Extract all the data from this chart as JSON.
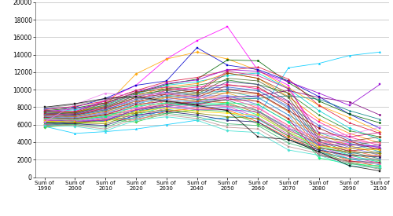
{
  "x_labels": [
    "Sum of\n1990",
    "Sum of\n2000",
    "Sum of\n2010",
    "Sum of\n2020",
    "Sum of\n2030",
    "Sum of\n2040",
    "Sum of\n2050",
    "Sum of\n2060",
    "Sum of\n2070",
    "Sum of\n2080",
    "Sum of\n2090",
    "Sum of\n2100"
  ],
  "ylim": [
    0,
    20000
  ],
  "yticks": [
    0,
    2000,
    4000,
    6000,
    8000,
    10000,
    12000,
    14000,
    16000,
    18000,
    20000
  ],
  "figsize": [
    5.0,
    2.75
  ],
  "dpi": 100,
  "series": [
    {
      "color": "#ff00ff",
      "marker": "s",
      "data": [
        7200,
        7500,
        8800,
        10500,
        13500,
        15600,
        17200,
        12200,
        10500,
        4200,
        3800,
        3400
      ]
    },
    {
      "color": "#00ccff",
      "marker": "^",
      "data": [
        5800,
        5000,
        5200,
        5500,
        6000,
        6500,
        6800,
        7000,
        12500,
        13000,
        13900,
        14300
      ]
    },
    {
      "color": "#ffa500",
      "marker": "D",
      "data": [
        7100,
        7400,
        8200,
        11800,
        13500,
        14300,
        13500,
        12200,
        10200,
        8200,
        6800,
        5200
      ]
    },
    {
      "color": "#0000cd",
      "marker": "s",
      "data": [
        7800,
        8000,
        9000,
        10500,
        11000,
        14800,
        12800,
        12300,
        11000,
        9200,
        7200,
        5600
      ]
    },
    {
      "color": "#006400",
      "marker": "o",
      "data": [
        7600,
        7900,
        8500,
        9600,
        10600,
        11200,
        13400,
        13300,
        10800,
        8700,
        7200,
        6200
      ]
    },
    {
      "color": "#dc143c",
      "marker": "^",
      "data": [
        7700,
        8100,
        8700,
        9900,
        10900,
        11400,
        12200,
        12600,
        11200,
        8200,
        6200,
        5000
      ]
    },
    {
      "color": "#9400d3",
      "marker": "s",
      "data": [
        7500,
        7800,
        8400,
        9700,
        10700,
        11100,
        12300,
        12100,
        10900,
        9600,
        8200,
        10600
      ]
    },
    {
      "color": "#00ced1",
      "marker": "D",
      "data": [
        7400,
        7700,
        8200,
        9500,
        10500,
        10900,
        11600,
        11900,
        10100,
        7600,
        5600,
        4300
      ]
    },
    {
      "color": "#ff8c00",
      "marker": "o",
      "data": [
        7200,
        7500,
        8100,
        9300,
        10300,
        10700,
        11900,
        11300,
        9200,
        6600,
        5000,
        3900
      ]
    },
    {
      "color": "#228b22",
      "marker": "^",
      "data": [
        7100,
        7400,
        8000,
        9100,
        10100,
        10500,
        11100,
        10600,
        9600,
        7100,
        5300,
        4600
      ]
    },
    {
      "color": "#ff1493",
      "marker": "s",
      "data": [
        7000,
        7300,
        7900,
        8900,
        9900,
        10300,
        10600,
        10100,
        8600,
        6300,
        4600,
        3600
      ]
    },
    {
      "color": "#4169e1",
      "marker": "D",
      "data": [
        6900,
        7200,
        7800,
        8700,
        9700,
        10100,
        10300,
        9900,
        8100,
        5900,
        4300,
        3300
      ]
    },
    {
      "color": "#8b0000",
      "marker": "o",
      "data": [
        6800,
        7100,
        7700,
        8500,
        9500,
        9900,
        10000,
        9600,
        7600,
        5600,
        4100,
        3100
      ]
    },
    {
      "color": "#20b2aa",
      "marker": "^",
      "data": [
        6700,
        7000,
        7600,
        8300,
        9300,
        9700,
        9800,
        9100,
        7100,
        5100,
        3900,
        2900
      ]
    },
    {
      "color": "#daa520",
      "marker": "s",
      "data": [
        6600,
        6900,
        7500,
        8100,
        9100,
        9500,
        9600,
        8600,
        6600,
        4900,
        3600,
        2700
      ]
    },
    {
      "color": "#7b68ee",
      "marker": "D",
      "data": [
        6500,
        6800,
        7400,
        7900,
        8900,
        9300,
        9300,
        8300,
        6300,
        4600,
        3400,
        2500
      ]
    },
    {
      "color": "#ff6347",
      "marker": "o",
      "data": [
        6400,
        6700,
        7300,
        7700,
        8700,
        9100,
        9100,
        7900,
        5900,
        4300,
        3100,
        2300
      ]
    },
    {
      "color": "#2e8b57",
      "marker": "^",
      "data": [
        6300,
        6600,
        7200,
        7500,
        8500,
        8900,
        8800,
        7600,
        5600,
        4100,
        2900,
        2100
      ]
    },
    {
      "color": "#b8860b",
      "marker": "s",
      "data": [
        6200,
        6500,
        7100,
        7300,
        8300,
        8700,
        8500,
        7300,
        5300,
        3900,
        2700,
        1900
      ]
    },
    {
      "color": "#00fa9a",
      "marker": "D",
      "data": [
        6100,
        6400,
        7000,
        7100,
        8100,
        8500,
        8300,
        7100,
        5100,
        3700,
        2500,
        1700
      ]
    },
    {
      "color": "#cc44cc",
      "marker": "o",
      "data": [
        6000,
        6300,
        6900,
        6900,
        7900,
        8300,
        8100,
        6800,
        4900,
        3500,
        2300,
        1600
      ]
    },
    {
      "color": "#1e90ff",
      "marker": "^",
      "data": [
        5900,
        6200,
        6800,
        6700,
        7700,
        8100,
        7900,
        6600,
        4700,
        3300,
        2100,
        1400
      ]
    },
    {
      "color": "#ff4500",
      "marker": "s",
      "data": [
        5800,
        6100,
        6700,
        6500,
        7500,
        7900,
        7700,
        6300,
        4500,
        3100,
        1900,
        1200
      ]
    },
    {
      "color": "#32cd32",
      "marker": "D",
      "data": [
        5700,
        6000,
        6600,
        6300,
        7300,
        7700,
        7500,
        6100,
        4300,
        2900,
        1700,
        1000
      ]
    },
    {
      "color": "#800080",
      "marker": "o",
      "data": [
        6000,
        6300,
        6500,
        7700,
        8300,
        8600,
        9100,
        9300,
        9900,
        9100,
        8600,
        7100
      ]
    },
    {
      "color": "#008080",
      "marker": "^",
      "data": [
        5900,
        6200,
        6400,
        7500,
        8100,
        8400,
        8900,
        9000,
        9300,
        8900,
        7600,
        6600
      ]
    },
    {
      "color": "#c71585",
      "marker": "s",
      "data": [
        7600,
        7500,
        8700,
        9900,
        10300,
        9900,
        12100,
        11600,
        10100,
        5100,
        4600,
        5100
      ]
    },
    {
      "color": "#8b4513",
      "marker": "D",
      "data": [
        7500,
        7400,
        8500,
        9700,
        10100,
        9700,
        11900,
        11300,
        9600,
        4600,
        4100,
        4600
      ]
    },
    {
      "color": "#556b2f",
      "marker": "o",
      "data": [
        7400,
        7300,
        8300,
        9500,
        9900,
        9500,
        11300,
        11000,
        9100,
        4300,
        3600,
        4100
      ]
    },
    {
      "color": "#483d8b",
      "marker": "^",
      "data": [
        7300,
        7200,
        8100,
        9300,
        9700,
        9300,
        10900,
        10600,
        8700,
        4000,
        3300,
        3700
      ]
    },
    {
      "color": "#b22222",
      "marker": "s",
      "data": [
        7200,
        7100,
        7900,
        9100,
        9500,
        9100,
        10500,
        10300,
        8300,
        3700,
        3000,
        3300
      ]
    },
    {
      "color": "#4682b4",
      "marker": "D",
      "data": [
        7100,
        7000,
        7700,
        8900,
        9300,
        8900,
        10100,
        9900,
        7900,
        3400,
        2700,
        2900
      ]
    },
    {
      "color": "#d2691e",
      "marker": "o",
      "data": [
        7000,
        6900,
        7500,
        8700,
        9100,
        8700,
        9700,
        9500,
        7500,
        3100,
        2400,
        2500
      ]
    },
    {
      "color": "#6495ed",
      "marker": "^",
      "data": [
        6900,
        6800,
        7300,
        8500,
        8900,
        8500,
        9300,
        9100,
        7100,
        2800,
        2100,
        2100
      ]
    },
    {
      "color": "#aa1133",
      "marker": "s",
      "data": [
        6800,
        6700,
        7100,
        8300,
        8700,
        8300,
        8900,
        8700,
        6700,
        2500,
        1800,
        1700
      ]
    },
    {
      "color": "#00ff7f",
      "marker": "D",
      "data": [
        6700,
        6600,
        6900,
        8100,
        8500,
        8100,
        8500,
        8300,
        6300,
        2200,
        1500,
        1300
      ]
    },
    {
      "color": "#ff69b4",
      "marker": "o",
      "data": [
        6600,
        6500,
        6700,
        7900,
        8300,
        7900,
        8100,
        7900,
        5900,
        3900,
        4100,
        3900
      ]
    },
    {
      "color": "#9932cc",
      "marker": "^",
      "data": [
        6500,
        6400,
        6500,
        7700,
        8100,
        7700,
        7700,
        7500,
        5500,
        3700,
        3700,
        3500
      ]
    },
    {
      "color": "#ffd700",
      "marker": "s",
      "data": [
        6400,
        6300,
        6300,
        7500,
        7900,
        7500,
        7300,
        7100,
        5100,
        3500,
        3300,
        3100
      ]
    },
    {
      "color": "#808000",
      "marker": "D",
      "data": [
        6300,
        6200,
        6100,
        7300,
        7700,
        7300,
        6900,
        6700,
        4700,
        3300,
        2900,
        2700
      ]
    },
    {
      "color": "#191970",
      "marker": "o",
      "data": [
        6200,
        6100,
        5900,
        7100,
        7500,
        7100,
        6500,
        6300,
        4300,
        3100,
        2500,
        2300
      ]
    },
    {
      "color": "#3cb371",
      "marker": "^",
      "data": [
        6100,
        6000,
        5700,
        6900,
        7300,
        6900,
        6100,
        5900,
        3900,
        2900,
        2100,
        1900
      ]
    },
    {
      "color": "#bc8f8f",
      "marker": "s",
      "data": [
        6000,
        5900,
        5500,
        6700,
        7100,
        6700,
        5700,
        5500,
        3500,
        2700,
        1700,
        1500
      ]
    },
    {
      "color": "#40e0d0",
      "marker": "D",
      "data": [
        5900,
        5800,
        5300,
        6500,
        6900,
        6500,
        5300,
        5100,
        3100,
        2500,
        1300,
        1100
      ]
    },
    {
      "color": "#ee82ee",
      "marker": "o",
      "data": [
        6300,
        8300,
        9600,
        9300,
        9600,
        9100,
        8900,
        8100,
        5600,
        4600,
        4900,
        5700
      ]
    },
    {
      "color": "#888888",
      "marker": "^",
      "data": [
        7900,
        8300,
        8900,
        9100,
        8600,
        8100,
        8300,
        7600,
        5100,
        2600,
        1600,
        900
      ]
    },
    {
      "color": "#111111",
      "marker": "s",
      "data": [
        8000,
        8400,
        9000,
        9200,
        8700,
        8200,
        7600,
        4600,
        4300,
        2900,
        1300,
        700
      ]
    }
  ]
}
